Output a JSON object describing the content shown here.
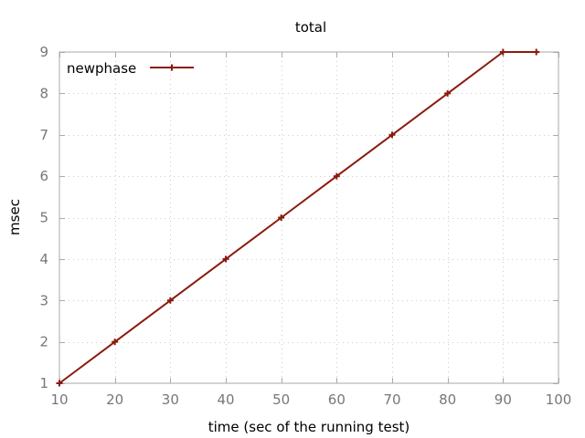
{
  "chart_data": {
    "type": "line",
    "title": "total",
    "xlabel": "time (sec of the running test)",
    "ylabel": "msec",
    "xlim": [
      10,
      100
    ],
    "ylim": [
      1,
      9
    ],
    "xticks": [
      10,
      20,
      30,
      40,
      50,
      60,
      70,
      80,
      90,
      100
    ],
    "yticks": [
      1,
      2,
      3,
      4,
      5,
      6,
      7,
      8,
      9
    ],
    "grid": true,
    "legend_position": "top-left",
    "series": [
      {
        "name": "newphase",
        "color": "#8b1a0e",
        "x": [
          10,
          20,
          30,
          40,
          50,
          60,
          70,
          80,
          90,
          96
        ],
        "y": [
          1,
          2,
          3,
          4,
          5,
          6,
          7,
          8,
          9,
          9
        ]
      }
    ]
  }
}
